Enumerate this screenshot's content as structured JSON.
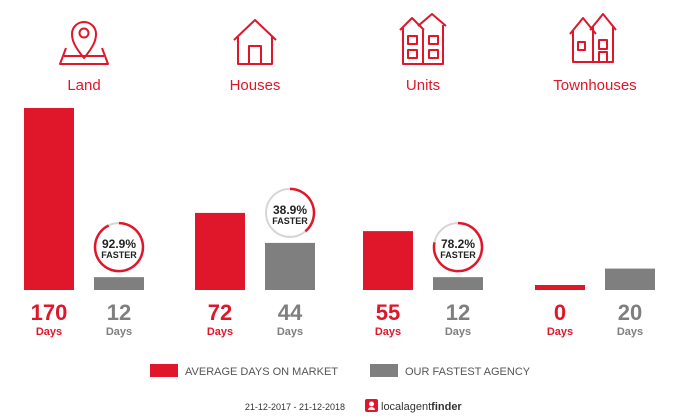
{
  "chart_data": {
    "type": "bar",
    "categories": [
      "Land",
      "Houses",
      "Units",
      "Townhouses"
    ],
    "unit_label": "Days",
    "series": [
      {
        "name": "AVERAGE DAYS ON MARKET",
        "color": "#e0162b",
        "values": [
          170,
          72,
          55,
          0
        ]
      },
      {
        "name": "OUR FASTEST AGENCY",
        "color": "#7f7f7f",
        "values": [
          12,
          44,
          12,
          20
        ]
      }
    ],
    "faster": [
      {
        "category": "Land",
        "percent": 92.9,
        "label": "92.9%"
      },
      {
        "category": "Houses",
        "percent": 38.9,
        "label": "38.9%"
      },
      {
        "category": "Units",
        "percent": 78.2,
        "label": "78.2%"
      }
    ],
    "faster_word": "FASTER",
    "legend_position": "bottom",
    "ylim": [
      0,
      170
    ]
  },
  "icons": [
    "location-pin-icon",
    "house-icon",
    "units-icon",
    "townhouses-icon"
  ],
  "footer": {
    "date_range": "21-12-2017 - 21-12-2018",
    "brand_light": "local",
    "brand_mid": "agent",
    "brand_bold": "finder"
  }
}
